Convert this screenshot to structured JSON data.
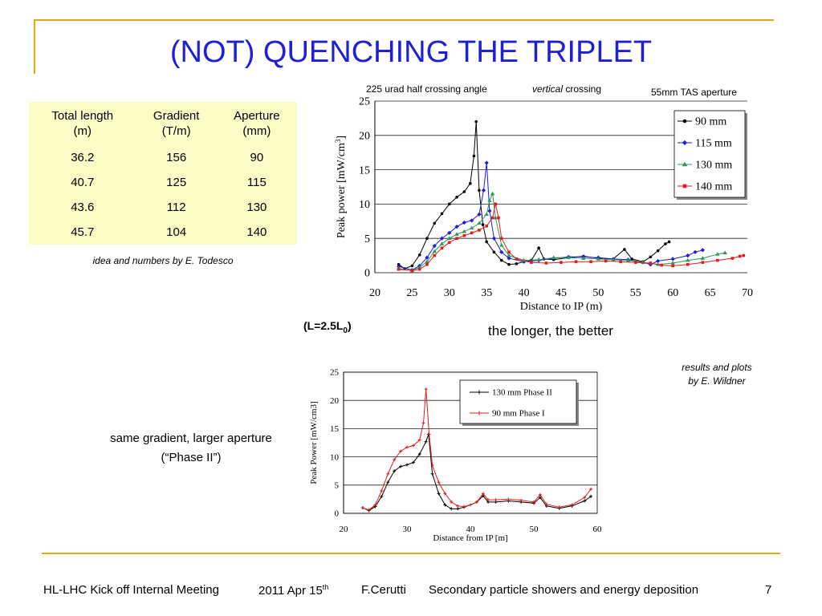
{
  "title": "(NOT) QUENCHING THE TRIPLET",
  "table": {
    "headers": [
      [
        "Total length",
        "(m)"
      ],
      [
        "Gradient",
        "(T/m)"
      ],
      [
        "Aperture",
        "(mm)"
      ]
    ],
    "rows": [
      [
        "36.2",
        "156",
        "90"
      ],
      [
        "40.7",
        "125",
        "115"
      ],
      [
        "43.6",
        "112",
        "130"
      ],
      [
        "45.7",
        "104",
        "140"
      ]
    ],
    "caption": "idea and numbers by E. Todesco"
  },
  "top_notes": {
    "crossing_angle": "225 urad half crossing angle",
    "crossing_italic": "vertical",
    "crossing_rest": " crossing",
    "tas": "55mm TAS aperture"
  },
  "l_note": {
    "prefix": "(L=2.5L",
    "sub": "0",
    "suffix": ")"
  },
  "longer_note": "the longer, the better",
  "credit": [
    "results and plots",
    "by E. Wildner"
  ],
  "phase_note": [
    "same gradient, larger aperture",
    "(“Phase II”)"
  ],
  "footer": {
    "meeting": "HL-LHC Kick off Internal Meeting",
    "date_main": "2011 Apr 15",
    "date_sup": "th",
    "author": "F.Cerutti",
    "topic": "Secondary particle showers and energy deposition",
    "page": "7"
  },
  "colors": {
    "title": "#1f1fd6",
    "frame": "#e0a90e",
    "table_bg": "#fdfbc6"
  },
  "chart_data": [
    {
      "type": "line",
      "title": "",
      "xlabel": "Distance to IP (m)",
      "ylabel_main": "Peak power [mW/cm",
      "ylabel_sup": "3",
      "ylabel_end": "]",
      "xlim": [
        20,
        70
      ],
      "ylim": [
        0,
        25
      ],
      "xticks": [
        20,
        25,
        30,
        35,
        40,
        45,
        50,
        55,
        60,
        65,
        70
      ],
      "yticks": [
        0,
        5,
        10,
        15,
        20,
        25
      ],
      "grid": true,
      "legend": "top-right",
      "series": [
        {
          "name": "90 mm",
          "color": "#000000",
          "marker": "circle",
          "points": [
            [
              23.2,
              1.2
            ],
            [
              24,
              0.6
            ],
            [
              25,
              1
            ],
            [
              26,
              2.6
            ],
            [
              27,
              5
            ],
            [
              28,
              7.2
            ],
            [
              29,
              8.6
            ],
            [
              30,
              10
            ],
            [
              31,
              11
            ],
            [
              32,
              11.8
            ],
            [
              32.8,
              13
            ],
            [
              33.3,
              17
            ],
            [
              33.6,
              22
            ],
            [
              34,
              12
            ],
            [
              34.5,
              7
            ],
            [
              35,
              4.5
            ],
            [
              36,
              3
            ],
            [
              37,
              1.8
            ],
            [
              38,
              1.2
            ],
            [
              39,
              1.3
            ],
            [
              40,
              1.6
            ],
            [
              41,
              1.8
            ],
            [
              42,
              3.6
            ],
            [
              42.7,
              2
            ],
            [
              44,
              1.9
            ],
            [
              46,
              2.2
            ],
            [
              48,
              2.4
            ],
            [
              50,
              2.1
            ],
            [
              52,
              2
            ],
            [
              53.5,
              3.4
            ],
            [
              54.5,
              2
            ],
            [
              56,
              1.6
            ],
            [
              57,
              2.3
            ],
            [
              58,
              3.2
            ],
            [
              59,
              4.2
            ],
            [
              59.5,
              4.5
            ]
          ]
        },
        {
          "name": "115 mm",
          "color": "#1c1cdc",
          "marker": "diamond",
          "points": [
            [
              23.2,
              0.9
            ],
            [
              25,
              0.4
            ],
            [
              26,
              1
            ],
            [
              27,
              2.2
            ],
            [
              28,
              3.9
            ],
            [
              29,
              5
            ],
            [
              30,
              5.8
            ],
            [
              31,
              6.7
            ],
            [
              32,
              7.3
            ],
            [
              33,
              7.6
            ],
            [
              34,
              8.5
            ],
            [
              34.6,
              12
            ],
            [
              35,
              16
            ],
            [
              35.4,
              9
            ],
            [
              36,
              5
            ],
            [
              37,
              3
            ],
            [
              38,
              2.1
            ],
            [
              40,
              1.6
            ],
            [
              42,
              1.8
            ],
            [
              44,
              2.1
            ],
            [
              46,
              2.3
            ],
            [
              48,
              2.3
            ],
            [
              50,
              2.2
            ],
            [
              52,
              2
            ],
            [
              54,
              1.9
            ],
            [
              56,
              1.5
            ],
            [
              57,
              1.2
            ],
            [
              58,
              1.7
            ],
            [
              60,
              2
            ],
            [
              62,
              2.5
            ],
            [
              63,
              3
            ],
            [
              64,
              3.3
            ]
          ]
        },
        {
          "name": "130 mm",
          "color": "#2d9b5a",
          "marker": "triangle",
          "points": [
            [
              23.2,
              0.6
            ],
            [
              25,
              0.3
            ],
            [
              26,
              0.8
            ],
            [
              27,
              1.6
            ],
            [
              28,
              3.1
            ],
            [
              29,
              4.2
            ],
            [
              30,
              5
            ],
            [
              31,
              5.6
            ],
            [
              32,
              6
            ],
            [
              33,
              6.5
            ],
            [
              34,
              7.2
            ],
            [
              35,
              8.5
            ],
            [
              35.4,
              10.5
            ],
            [
              35.8,
              11.5
            ],
            [
              36.2,
              8
            ],
            [
              37,
              4
            ],
            [
              38,
              2.5
            ],
            [
              40,
              1.8
            ],
            [
              42,
              1.9
            ],
            [
              44,
              2.2
            ],
            [
              46,
              2.2
            ],
            [
              48,
              2.1
            ],
            [
              50,
              2
            ],
            [
              52,
              1.9
            ],
            [
              54,
              1.8
            ],
            [
              56,
              1.5
            ],
            [
              58,
              1.2
            ],
            [
              60,
              1.4
            ],
            [
              62,
              1.8
            ],
            [
              64,
              2.1
            ],
            [
              66,
              2.7
            ],
            [
              67,
              2.9
            ]
          ]
        },
        {
          "name": "140 mm",
          "color": "#e01c1c",
          "marker": "square",
          "points": [
            [
              23.2,
              0.5
            ],
            [
              25,
              0.3
            ],
            [
              26,
              0.5
            ],
            [
              27,
              1.2
            ],
            [
              28,
              2.5
            ],
            [
              29,
              3.6
            ],
            [
              30,
              4.4
            ],
            [
              31,
              5
            ],
            [
              32,
              5.4
            ],
            [
              33,
              5.8
            ],
            [
              34,
              6.2
            ],
            [
              35,
              6.8
            ],
            [
              35.8,
              8
            ],
            [
              36.2,
              10
            ],
            [
              36.6,
              8
            ],
            [
              37,
              5
            ],
            [
              38,
              3
            ],
            [
              39,
              2
            ],
            [
              41,
              1.5
            ],
            [
              43,
              1.4
            ],
            [
              45,
              1.5
            ],
            [
              47,
              1.6
            ],
            [
              49,
              1.6
            ],
            [
              51,
              1.7
            ],
            [
              53,
              1.6
            ],
            [
              55,
              1.5
            ],
            [
              57,
              1.4
            ],
            [
              58.5,
              1.1
            ],
            [
              60,
              1
            ],
            [
              62,
              1.2
            ],
            [
              64,
              1.5
            ],
            [
              66,
              1.8
            ],
            [
              68,
              2.1
            ],
            [
              69,
              2.4
            ],
            [
              69.5,
              2.5
            ]
          ]
        }
      ]
    },
    {
      "type": "line",
      "title": "",
      "xlabel": "Distance from IP [m]",
      "ylabel": "Peak Power [mW/cm3]",
      "xlim": [
        20,
        60
      ],
      "ylim": [
        0,
        25
      ],
      "xticks": [
        20,
        30,
        40,
        50,
        60
      ],
      "yticks": [
        0,
        5,
        10,
        15,
        20,
        25
      ],
      "grid": true,
      "legend": "top-right",
      "series": [
        {
          "name": "130 mm Phase II",
          "color": "#000000",
          "marker": "plus",
          "points": [
            [
              23,
              1
            ],
            [
              24,
              0.5
            ],
            [
              25,
              1.2
            ],
            [
              26,
              3
            ],
            [
              27,
              5.5
            ],
            [
              28,
              7.5
            ],
            [
              29,
              8.3
            ],
            [
              30,
              8.6
            ],
            [
              31,
              9
            ],
            [
              32,
              10.5
            ],
            [
              33,
              12.7
            ],
            [
              33.4,
              14
            ],
            [
              34,
              7
            ],
            [
              35,
              3.5
            ],
            [
              36,
              1.5
            ],
            [
              37,
              0.8
            ],
            [
              38,
              0.8
            ],
            [
              39,
              1.1
            ],
            [
              40,
              1.5
            ],
            [
              41,
              2
            ],
            [
              42,
              3.1
            ],
            [
              42.8,
              2
            ],
            [
              44,
              2
            ],
            [
              46,
              2.2
            ],
            [
              48,
              2
            ],
            [
              50,
              1.8
            ],
            [
              51,
              2.8
            ],
            [
              52,
              1.3
            ],
            [
              54,
              0.9
            ],
            [
              56,
              1.3
            ],
            [
              58,
              2.2
            ],
            [
              59,
              3
            ]
          ]
        },
        {
          "name": "90 mm Phase I",
          "color": "#e01c1c",
          "marker": "plus",
          "points": [
            [
              23,
              1
            ],
            [
              24,
              0.6
            ],
            [
              25,
              1.5
            ],
            [
              26,
              4
            ],
            [
              27,
              7
            ],
            [
              28,
              9.5
            ],
            [
              29,
              11
            ],
            [
              30,
              11.7
            ],
            [
              31,
              12
            ],
            [
              32,
              13
            ],
            [
              32.6,
              16
            ],
            [
              33,
              22
            ],
            [
              33.5,
              14
            ],
            [
              34,
              8.5
            ],
            [
              35,
              5.5
            ],
            [
              36,
              3.5
            ],
            [
              37,
              2
            ],
            [
              38,
              1.3
            ],
            [
              39,
              1.2
            ],
            [
              40,
              1.5
            ],
            [
              41,
              2
            ],
            [
              42,
              3.5
            ],
            [
              42.8,
              2.4
            ],
            [
              44,
              2.4
            ],
            [
              46,
              2.5
            ],
            [
              48,
              2.3
            ],
            [
              50,
              2
            ],
            [
              51,
              3.3
            ],
            [
              52,
              1.6
            ],
            [
              54,
              1.1
            ],
            [
              56,
              1.5
            ],
            [
              58,
              2.8
            ],
            [
              59,
              4.3
            ]
          ]
        }
      ]
    }
  ]
}
